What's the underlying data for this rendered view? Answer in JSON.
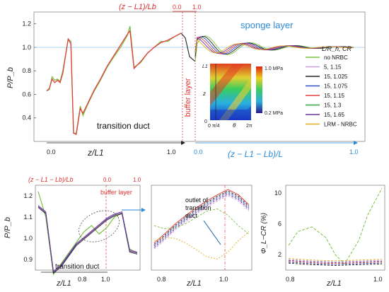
{
  "figure": {
    "ylabel": "P/P_b",
    "top_annotations": {
      "x_formula_top": "(z − L1)/Lb",
      "tick_top_0": "0.0",
      "tick_top_1": "1.0",
      "sponge_layer": "sponge layer",
      "buffer_layer": "buffer layer",
      "transition_duct": "transition duct",
      "x_formula_bottom": "z/L1",
      "x_formula_right": "(z − L1 − Lb)/L",
      "bottom_tick_0": "0.0",
      "bottom_tick_1": "1.0",
      "right_tick_0": "0.0",
      "right_tick_1": "1.0"
    },
    "legend": {
      "title": "L/R_h, CR",
      "items": [
        {
          "label": "no NRBC",
          "color": "#7cc243",
          "dash": false
        },
        {
          "label": "5, 1.15",
          "color": "#c9a0e0",
          "dash": false
        },
        {
          "label": "15, 1.025",
          "color": "#222222",
          "dash": false
        },
        {
          "label": "15, 1.075",
          "color": "#3050c8",
          "dash": false
        },
        {
          "label": "15, 1.15",
          "color": "#e04040",
          "dash": false
        },
        {
          "label": "15, 1.3",
          "color": "#30a040",
          "dash": false
        },
        {
          "label": "15, 1.65",
          "color": "#7030a0",
          "dash": false
        },
        {
          "label": "LRM - NRBC",
          "color": "#e0b020",
          "dash": false
        }
      ]
    },
    "inset": {
      "colorbar_top": "1.0 MPa",
      "colorbar_bottom": "0.2 MPa",
      "y_label": "z",
      "y_top": "L1",
      "y_bottom": "0",
      "x_label": "θ",
      "x_left": "0 π/4",
      "x_right": "2π"
    },
    "panel_a": {
      "x_formula_top": "(z − L1 − Lb)/Lb",
      "tick_top_0": "0.0",
      "tick_top_1": "1.0",
      "buffer_layer": "buffer layer",
      "transition_duct": "transition duct",
      "xlabel": "z/L1",
      "ylabel": "P/P_b"
    },
    "panel_b": {
      "annotation": "outlet of transition duct",
      "xlabel": "z/L1"
    },
    "panel_c": {
      "ylabel": "Φ_L−CR (%)",
      "xlabel": "z/L1"
    }
  },
  "chart_data": [
    {
      "type": "line",
      "title": "",
      "xlabel": "z/L1",
      "ylabel": "P/P_b",
      "ylim": [
        0.2,
        1.3
      ],
      "yticks": [
        0.4,
        0.6,
        0.8,
        1.0,
        1.2
      ],
      "xticks": [
        "0.0",
        "1.0"
      ],
      "grid": false,
      "legend_position": "right",
      "series": [
        {
          "name": "no NRBC",
          "x": [
            0.0,
            0.02,
            0.04,
            0.06,
            0.08,
            0.1,
            0.12,
            0.16,
            0.18,
            0.2,
            0.22,
            0.25,
            0.27,
            0.3,
            0.35,
            0.4,
            0.45,
            0.5,
            0.55,
            0.6,
            0.62,
            0.65,
            0.7,
            0.75,
            0.8,
            0.85,
            0.9,
            0.95,
            1.0
          ],
          "values": [
            0.63,
            0.64,
            0.75,
            0.72,
            0.73,
            0.71,
            0.8,
            1.07,
            1.05,
            0.27,
            0.27,
            0.5,
            0.42,
            0.5,
            0.62,
            0.72,
            0.83,
            0.92,
            1.0,
            1.1,
            1.18,
            0.83,
            0.87,
            0.95,
            1.0,
            1.05,
            1.05,
            1.09,
            1.12
          ]
        },
        {
          "name": "15, 1.15",
          "x": [
            0.0,
            0.02,
            0.04,
            0.06,
            0.08,
            0.1,
            0.12,
            0.16,
            0.18,
            0.2,
            0.22,
            0.25,
            0.27,
            0.3,
            0.35,
            0.4,
            0.45,
            0.5,
            0.55,
            0.6,
            0.62,
            0.65,
            0.7,
            0.75,
            0.8,
            0.85,
            0.9,
            0.95,
            1.0
          ],
          "values": [
            0.63,
            0.65,
            0.73,
            0.7,
            0.72,
            0.7,
            0.78,
            1.07,
            1.03,
            0.27,
            0.26,
            0.48,
            0.44,
            0.51,
            0.63,
            0.73,
            0.84,
            0.93,
            1.02,
            1.11,
            1.14,
            0.82,
            0.88,
            0.95,
            1.0,
            1.04,
            1.06,
            1.09,
            1.12
          ]
        }
      ]
    },
    {
      "type": "line",
      "xlabel": "z/L1",
      "ylabel": "P/P_b",
      "ylim": [
        0.85,
        1.25
      ],
      "yticks": [
        0.9,
        1.0,
        1.1,
        1.2
      ],
      "xticks": [
        "0.8",
        "1.0"
      ],
      "series": [
        {
          "name": "no NRBC",
          "values": [
            1.22,
            1.1,
            0.83,
            0.88,
            0.93,
            0.98,
            1.03,
            1.06,
            1.02,
            1.05,
            1.1,
            1.12,
            0.95,
            0.93
          ]
        },
        {
          "name": "15, 1.15",
          "values": [
            1.15,
            1.12,
            0.84,
            0.87,
            0.92,
            0.97,
            1.0,
            1.03,
            1.06,
            1.09,
            1.11,
            1.12,
            0.94,
            0.93
          ]
        }
      ]
    },
    {
      "type": "line",
      "xlabel": "z/L1",
      "xticks": [
        "0.8",
        "1.0"
      ],
      "series": [
        {
          "name": "15, 1.15",
          "values": [
            0.3,
            0.42,
            0.55,
            0.66,
            0.76,
            0.85,
            0.93,
            1.0,
            0.93,
            0.8
          ]
        },
        {
          "name": "no NRBC",
          "values": [
            0.55,
            0.62,
            0.6,
            0.5,
            0.35,
            0.2,
            0.15,
            0.3,
            0.55,
            0.75
          ]
        }
      ]
    },
    {
      "type": "line",
      "xlabel": "z/L1",
      "ylabel": "Φ_L−CR (%)",
      "ylim": [
        0,
        11
      ],
      "yticks": [
        2,
        6,
        10
      ],
      "xticks": [
        "0.8",
        "1.0"
      ],
      "series": [
        {
          "name": "no NRBC",
          "x": [
            0.8,
            0.82,
            0.85,
            0.88,
            0.9,
            0.92,
            0.95,
            0.97,
            1.0
          ],
          "values": [
            3.2,
            5.0,
            5.6,
            4.2,
            2.0,
            0.8,
            3.8,
            7.2,
            10.6
          ]
        },
        {
          "name": "15, 1.15",
          "x": [
            0.8,
            0.85,
            0.9,
            0.95,
            1.0
          ],
          "values": [
            1.2,
            1.0,
            0.9,
            1.0,
            1.1
          ]
        }
      ]
    }
  ]
}
